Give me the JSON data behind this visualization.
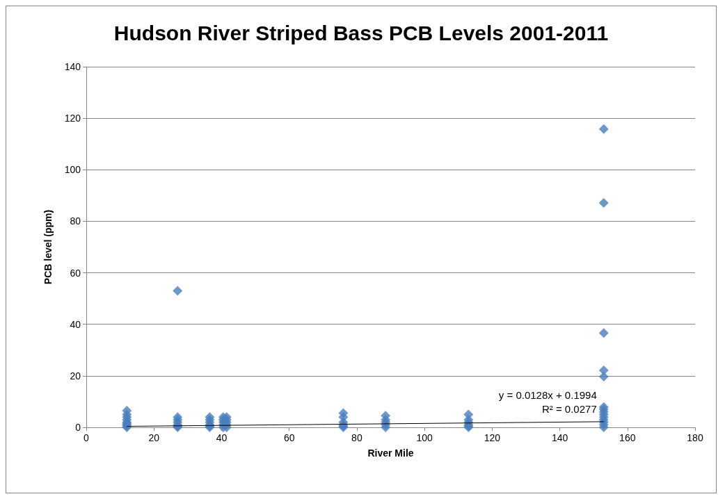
{
  "chart_data": {
    "type": "scatter",
    "title": "Hudson River Striped Bass PCB Levels 2001-2011",
    "xlabel": "River Mile",
    "ylabel": "PCB level (ppm)",
    "xlim": [
      0,
      180
    ],
    "xticks": [
      0,
      20,
      40,
      60,
      80,
      100,
      120,
      140,
      160,
      180
    ],
    "ylim": [
      0,
      140
    ],
    "yticks": [
      0,
      20,
      40,
      60,
      80,
      100,
      120,
      140
    ],
    "grid": "y",
    "marker": "diamond",
    "series": [
      {
        "color": "#4a7ebb",
        "x": [
          12,
          12,
          12,
          12,
          12,
          12,
          12,
          12,
          12,
          27,
          27,
          27,
          27,
          27,
          27,
          27,
          36.5,
          36.5,
          36.5,
          36.5,
          36.5,
          36.5,
          40.5,
          40.5,
          40.5,
          40.5,
          40.5,
          41.5,
          41.5,
          41.5,
          41.5,
          41.5,
          76,
          76,
          76,
          76,
          76,
          76,
          88.5,
          88.5,
          88.5,
          88.5,
          88.5,
          113,
          113,
          113,
          113,
          113,
          113,
          153,
          153,
          153,
          153,
          153,
          153,
          153,
          153,
          153,
          153,
          153,
          153,
          153,
          153
        ],
        "values": [
          0,
          0.5,
          1,
          1.5,
          2,
          3,
          4,
          5,
          6.5,
          0,
          0.5,
          1,
          2,
          3,
          4,
          53,
          0,
          0.5,
          1,
          2,
          3,
          4,
          0,
          1,
          2,
          3,
          4,
          0,
          1,
          2,
          3,
          4,
          0,
          0.5,
          1,
          2,
          4,
          5.5,
          0,
          1,
          2,
          3,
          4.5,
          0,
          0.5,
          1,
          2,
          3,
          5,
          0,
          1,
          2,
          3,
          4,
          5,
          6,
          7,
          7.9,
          19.7,
          22.1,
          36.6,
          87.1,
          115.8
        ]
      },
      {
        "type": "line",
        "color": "#000000",
        "marker": "none",
        "x": [
          12,
          153
        ],
        "values": [
          0.4,
          2.2
        ]
      }
    ],
    "annotations": [
      "y = 0.0128x + 0.1994",
      "R² = 0.0277"
    ]
  }
}
